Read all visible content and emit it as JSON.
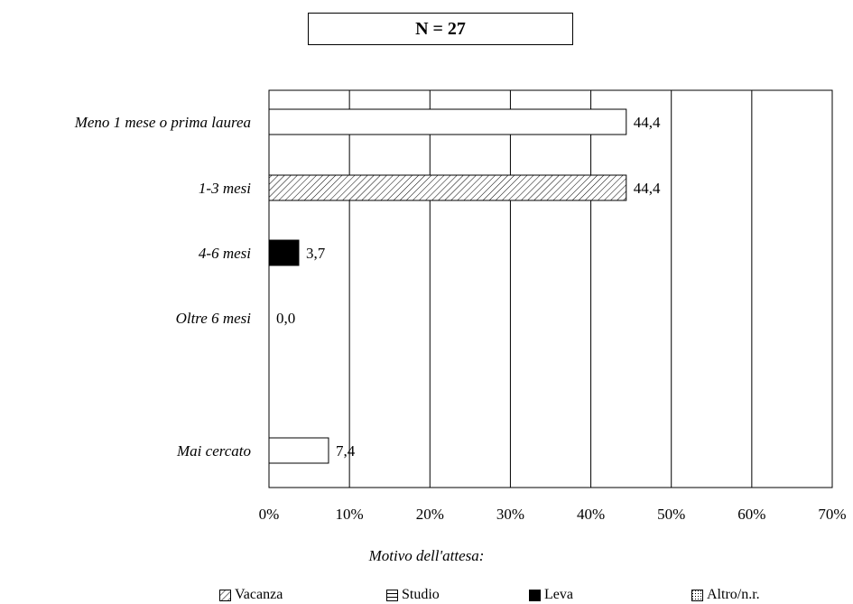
{
  "header": {
    "n_label": "N = 27"
  },
  "chart_data": {
    "type": "bar",
    "orientation": "horizontal",
    "categories": [
      "Meno 1 mese o prima laurea",
      "1-3 mesi",
      "4-6 mesi",
      "Oltre 6 mesi",
      "Mai cercato"
    ],
    "values": [
      44.4,
      44.4,
      3.7,
      0.0,
      7.4
    ],
    "value_labels": [
      "44,4",
      "44,4",
      "3,7",
      "0,0",
      "7,4"
    ],
    "fills": [
      "white",
      "hatch",
      "black",
      "white",
      "white"
    ],
    "xlim": [
      0,
      70
    ],
    "xticks": [
      "0%",
      "10%",
      "20%",
      "30%",
      "40%",
      "50%",
      "60%",
      "70%"
    ],
    "grid": "vertical",
    "caption": "Motivo dell'attesa:",
    "legend": [
      {
        "label": "Vacanza",
        "pattern": "diagonal-hatch"
      },
      {
        "label": "Studio",
        "pattern": "horizontal-lines"
      },
      {
        "label": "Leva",
        "pattern": "solid-black"
      },
      {
        "label": "Altro/n.r.",
        "pattern": "dotted"
      }
    ]
  }
}
